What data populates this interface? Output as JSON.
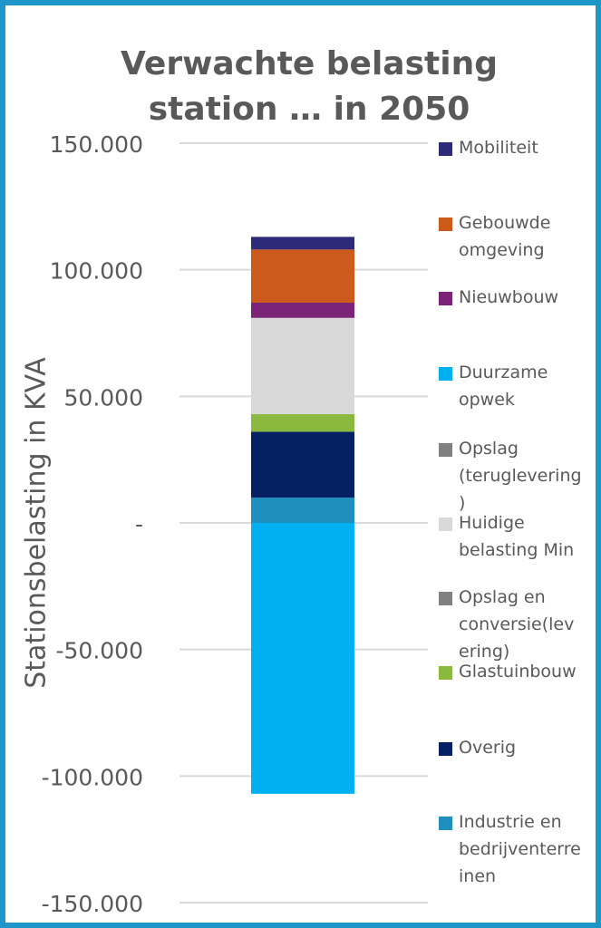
{
  "chart_data": {
    "type": "bar",
    "stacked": true,
    "title": [
      "Verwachte belasting",
      "station … in 2050"
    ],
    "xlabel": "",
    "ylabel": "Stationsbelasting in KVA",
    "ylim": [
      -150000,
      150000
    ],
    "yticks": [
      {
        "value": 150000,
        "label": "150.000"
      },
      {
        "value": 100000,
        "label": "100.000"
      },
      {
        "value": 50000,
        "label": "50.000"
      },
      {
        "value": 0,
        "label": "-"
      },
      {
        "value": -50000,
        "label": "-50.000"
      },
      {
        "value": -100000,
        "label": "-100.000"
      },
      {
        "value": -150000,
        "label": "-150.000"
      }
    ],
    "grid": true,
    "legend_position": "right",
    "categories": [
      ""
    ],
    "series": [
      {
        "name": "Industrie en bedrijventerreinen",
        "color": "#1f8fbf",
        "values": [
          10000
        ]
      },
      {
        "name": "Overig",
        "color": "#052063",
        "values": [
          26000
        ]
      },
      {
        "name": "Glastuinbouw",
        "color": "#8bb83f",
        "values": [
          7000
        ]
      },
      {
        "name": "Opslag en conversie(levering)",
        "color": "#808080",
        "values": [
          0
        ]
      },
      {
        "name": "Huidige belasting Min",
        "color": "#d9d9d9",
        "values": [
          38000
        ]
      },
      {
        "name": "Opslag (teruglevering)",
        "color": "#808080",
        "values": [
          0
        ]
      },
      {
        "name": "Duurzame opwek",
        "color": "#00b0f0",
        "values": [
          -107000
        ]
      },
      {
        "name": "Nieuwbouw",
        "color": "#7b2377",
        "values": [
          6000
        ]
      },
      {
        "name": "Gebouwde omgeving",
        "color": "#cc5a1a",
        "values": [
          21000
        ]
      },
      {
        "name": "Mobiliteit",
        "color": "#2e2a7a",
        "values": [
          5000
        ]
      }
    ],
    "legend": [
      {
        "label": "Mobiliteit",
        "color": "#2e2a7a"
      },
      {
        "label": "Gebouwde omgeving",
        "color": "#cc5a1a"
      },
      {
        "label": "Nieuwbouw",
        "color": "#7b2377"
      },
      {
        "label": "Duurzame opwek",
        "color": "#00b0f0"
      },
      {
        "label": "Opslag (teruglevering)",
        "color": "#808080"
      },
      {
        "label": "Huidige belasting Min",
        "color": "#d9d9d9"
      },
      {
        "label": "Opslag en conversie(levering)",
        "color": "#808080"
      },
      {
        "label": "Glastuinbouw",
        "color": "#8bb83f"
      },
      {
        "label": "Overig",
        "color": "#052063"
      },
      {
        "label": "Industrie en bedrijventerreinen",
        "color": "#1f8fbf"
      }
    ]
  }
}
